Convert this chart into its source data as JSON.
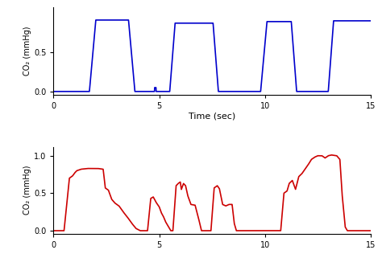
{
  "blue_color": "#0000CC",
  "red_color": "#CC0000",
  "xlim": [
    0,
    15
  ],
  "xlabel": "Time (sec)",
  "ylabel": "CO₂ (mmHg)",
  "xticks": [
    0,
    5,
    10,
    15
  ],
  "yticks_top": [
    0,
    0.5
  ],
  "yticks_bot": [
    0,
    0.5,
    1
  ],
  "bg_color": "#ffffff",
  "linewidth": 1.2
}
